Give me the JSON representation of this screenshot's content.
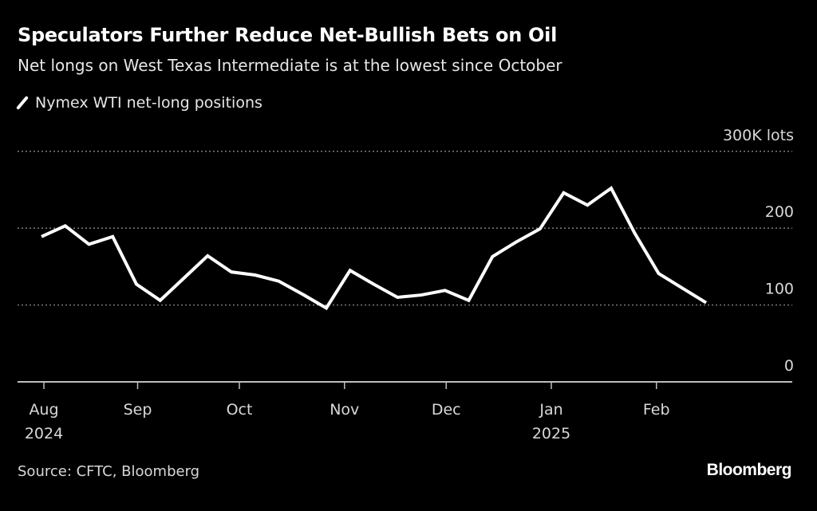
{
  "chart_data": {
    "type": "line",
    "title": "Speculators Further Reduce Net-Bullish Bets on Oil",
    "subtitle": "Net longs on West Texas Intermediate is at the lowest since October",
    "ylabel": "",
    "xlabel": "",
    "ylim": [
      0,
      300
    ],
    "y_ticks": [
      {
        "value": 300,
        "label": "300K lots"
      },
      {
        "value": 200,
        "label": "200"
      },
      {
        "value": 100,
        "label": "100"
      },
      {
        "value": 0,
        "label": "0"
      }
    ],
    "x_ticks": [
      {
        "date": "2024-08-01",
        "label": "Aug",
        "year": "2024"
      },
      {
        "date": "2024-09-01",
        "label": "Sep",
        "year": ""
      },
      {
        "date": "2024-10-01",
        "label": "Oct",
        "year": ""
      },
      {
        "date": "2024-11-01",
        "label": "Nov",
        "year": ""
      },
      {
        "date": "2024-12-01",
        "label": "Dec",
        "year": ""
      },
      {
        "date": "2025-01-01",
        "label": "Jan",
        "year": "2025"
      },
      {
        "date": "2025-02-01",
        "label": "Feb",
        "year": ""
      }
    ],
    "grid": true,
    "legend_position": "top-left",
    "series": [
      {
        "name": "Nymex WTI net-long positions",
        "color": "#ffffff",
        "x": [
          "2024-08-06",
          "2024-08-13",
          "2024-08-20",
          "2024-08-27",
          "2024-09-03",
          "2024-09-10",
          "2024-09-17",
          "2024-09-24",
          "2024-10-01",
          "2024-10-08",
          "2024-10-15",
          "2024-10-22",
          "2024-10-29",
          "2024-11-05",
          "2024-11-12",
          "2024-11-19",
          "2024-11-26",
          "2024-12-03",
          "2024-12-10",
          "2024-12-17",
          "2024-12-24",
          "2024-12-31",
          "2025-01-07",
          "2025-01-14",
          "2025-01-21",
          "2025-01-28",
          "2025-02-04",
          "2025-02-11",
          "2025-02-18"
        ],
        "values": [
          189,
          203,
          179,
          189,
          127,
          106,
          135,
          164,
          143,
          139,
          131,
          114,
          96,
          145,
          127,
          110,
          113,
          119,
          106,
          163,
          182,
          199,
          246,
          230,
          252,
          193,
          141,
          122,
          103
        ]
      }
    ]
  },
  "footer": {
    "source": "Source: CFTC, Bloomberg",
    "logo": "Bloomberg"
  },
  "colors": {
    "background": "#000000",
    "line": "#ffffff",
    "grid": "#8a8a8a",
    "text": "#d8d8d8"
  }
}
